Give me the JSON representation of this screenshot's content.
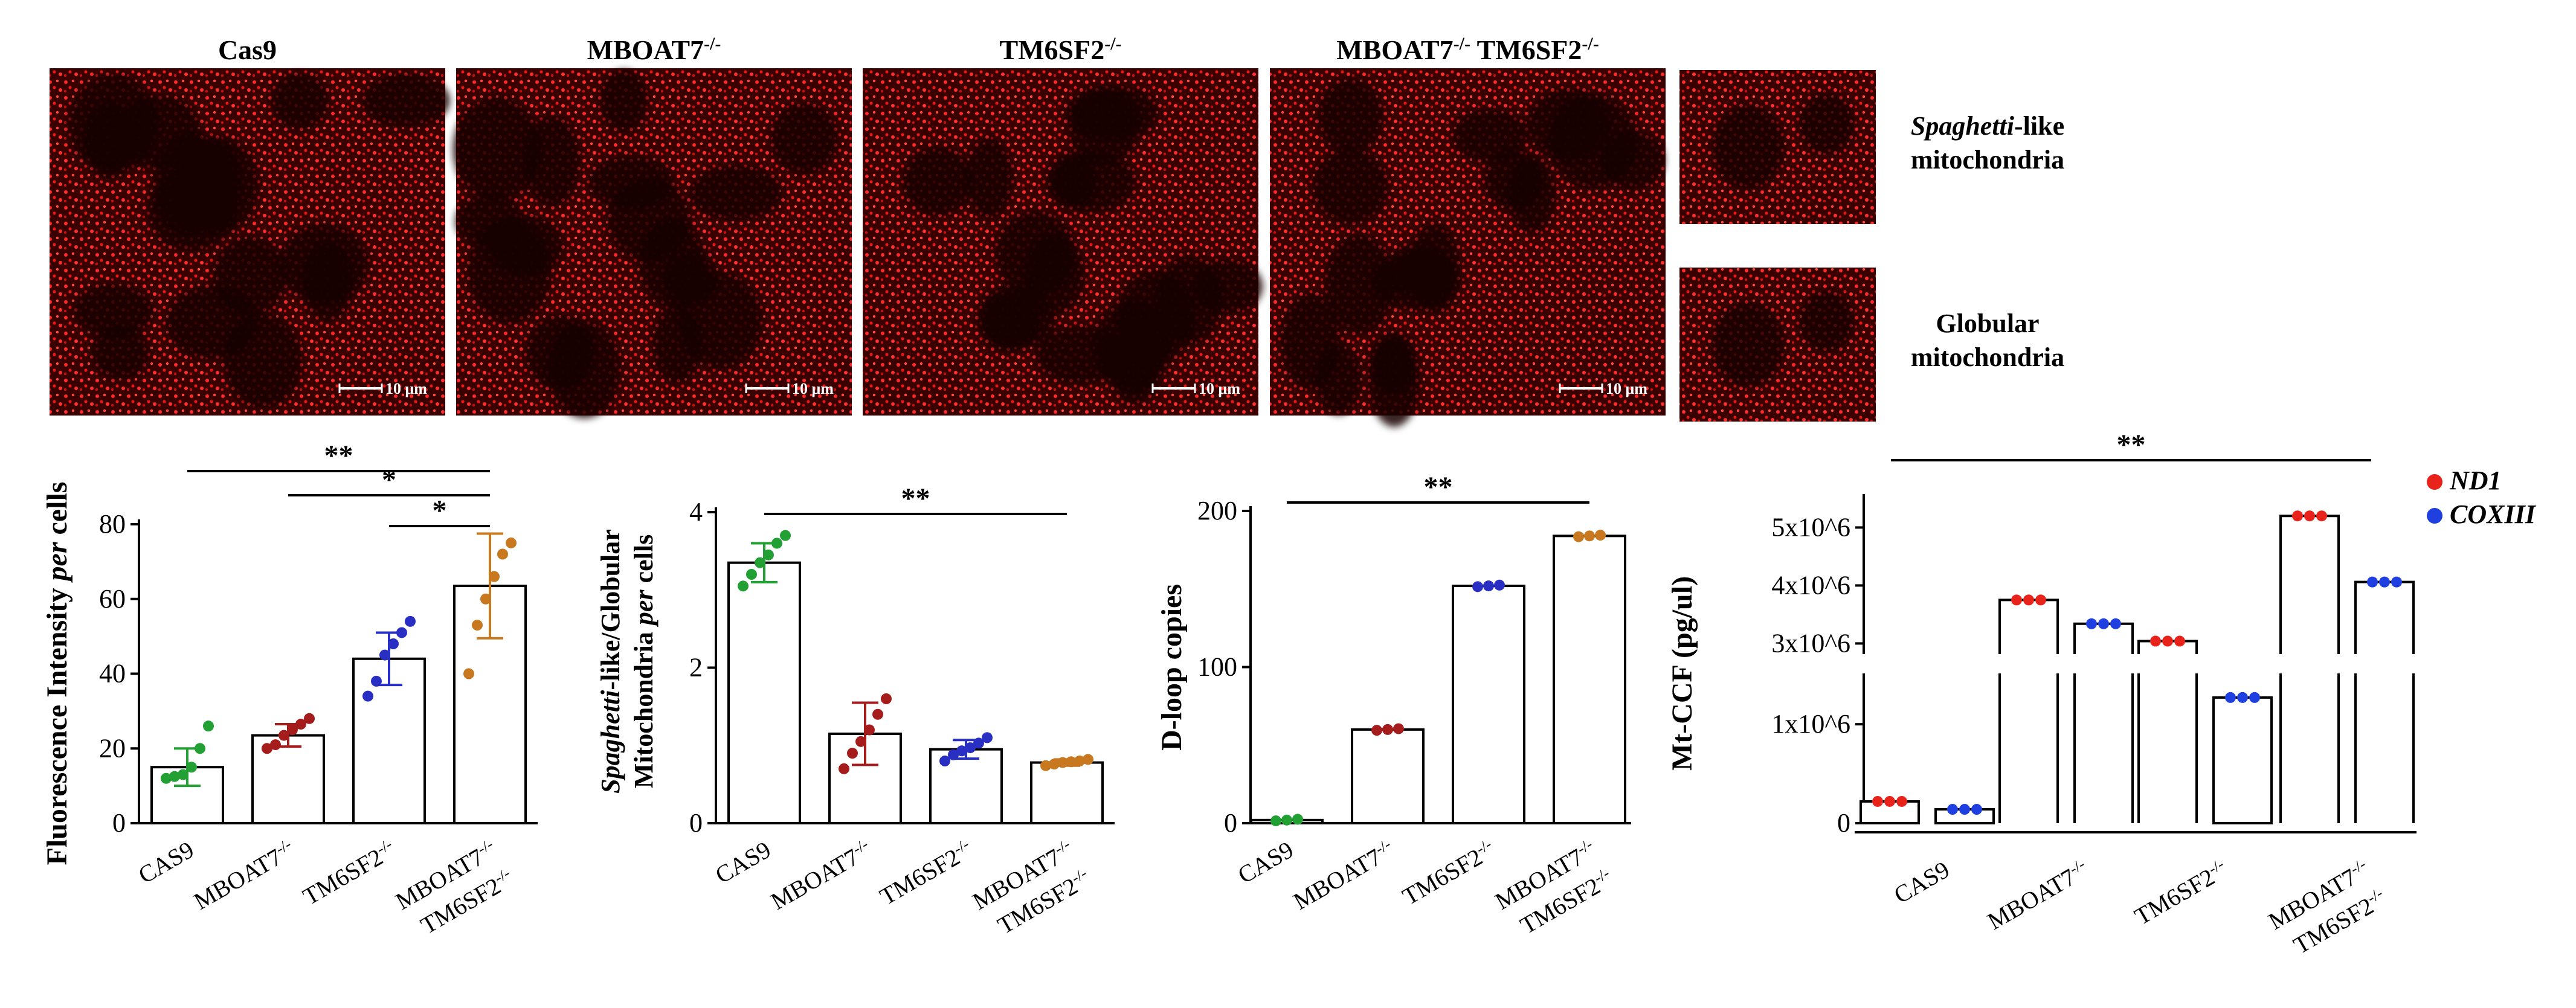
{
  "colors": {
    "micrograph_red": "#e8141c",
    "micrograph_dark": "#140000",
    "cas9": "#22a033",
    "mboat7": "#a51c1c",
    "tm6sf2": "#2a2fc4",
    "double": "#c8781e",
    "nd1": "#e8231b",
    "coxiii": "#1f3fe0"
  },
  "micrographs": {
    "panels": [
      {
        "label": "Cas9",
        "sup": "",
        "label2": "",
        "sup2": "",
        "scale_bar": "10 μm"
      },
      {
        "label": "MBOAT7",
        "sup": "-/-",
        "label2": "",
        "sup2": "",
        "scale_bar": "10 μm"
      },
      {
        "label": "TM6SF2",
        "sup": "-/-",
        "label2": "",
        "sup2": "",
        "scale_bar": "10 μm"
      },
      {
        "label": "MBOAT7",
        "sup": "-/-",
        "label2": " TM6SF2",
        "sup2": "-/-",
        "scale_bar": "10 μm"
      }
    ],
    "insets": [
      {
        "italic": "Spaghetti",
        "rest": "-like",
        "line2": "mitochondria"
      },
      {
        "italic": "",
        "rest": "Globular",
        "line2": "mitochondria"
      }
    ]
  },
  "chart_data": [
    {
      "type": "bar",
      "title": "",
      "ylabel_parts": [
        "Fluorescence Intensity ",
        "per",
        " cells"
      ],
      "categories": [
        "CAS9",
        "MBOAT7-/-",
        "TM6SF2-/-",
        "MBOAT7-/- TM6SF2-/-"
      ],
      "category_labels": [
        {
          "l1": "CAS9",
          "s1": "",
          "l2": "",
          "s2": ""
        },
        {
          "l1": "MBOAT7",
          "s1": "-/-",
          "l2": "",
          "s2": ""
        },
        {
          "l1": "TM6SF2",
          "s1": "-/-",
          "l2": "",
          "s2": ""
        },
        {
          "l1": "MBOAT7",
          "s1": "-/-",
          "l2": "TM6SF2",
          "s2": "-/-"
        }
      ],
      "values": [
        15,
        23.5,
        44,
        63.5
      ],
      "sd": [
        5,
        3,
        7,
        14
      ],
      "points": [
        [
          12,
          12.5,
          13,
          15,
          20,
          26
        ],
        [
          20,
          21,
          23.5,
          25,
          26.5,
          28
        ],
        [
          34,
          38,
          45,
          48,
          51,
          54
        ],
        [
          40,
          53,
          60,
          66,
          72,
          75
        ]
      ],
      "ylim": [
        0,
        80
      ],
      "yticks": [
        0,
        20,
        40,
        60,
        80
      ],
      "significance": [
        {
          "from": 0,
          "to": 3,
          "label": "**"
        },
        {
          "from": 1,
          "to": 3,
          "label": "*"
        },
        {
          "from": 2,
          "to": 3,
          "label": "*"
        }
      ]
    },
    {
      "type": "bar",
      "title": "",
      "ylabel_line1_parts": [
        "Spaghetti",
        "-like/Globular"
      ],
      "ylabel_line2_parts": [
        "Mitochondria ",
        "per",
        " cells"
      ],
      "categories": [
        "CAS9",
        "MBOAT7-/-",
        "TM6SF2-/-",
        "MBOAT7-/- TM6SF2-/-"
      ],
      "category_labels": [
        {
          "l1": "CAS9",
          "s1": "",
          "l2": "",
          "s2": ""
        },
        {
          "l1": "MBOAT7",
          "s1": "-/-",
          "l2": "",
          "s2": ""
        },
        {
          "l1": "TM6SF2",
          "s1": "-/-",
          "l2": "",
          "s2": ""
        },
        {
          "l1": "MBOAT7",
          "s1": "-/-",
          "l2": "TM6SF2",
          "s2": "-/-"
        }
      ],
      "values": [
        3.35,
        1.15,
        0.95,
        0.78
      ],
      "sd": [
        0.25,
        0.4,
        0.12,
        0.04
      ],
      "points": [
        [
          3.05,
          3.2,
          3.35,
          3.45,
          3.6,
          3.7
        ],
        [
          0.7,
          0.9,
          1.05,
          1.2,
          1.4,
          1.6
        ],
        [
          0.8,
          0.88,
          0.93,
          0.97,
          1.03,
          1.1
        ],
        [
          0.74,
          0.76,
          0.78,
          0.79,
          0.8,
          0.82
        ]
      ],
      "ylim": [
        0,
        4
      ],
      "yticks": [
        0,
        2,
        4
      ],
      "significance": [
        {
          "from": 0,
          "to": 3,
          "label": "**"
        }
      ]
    },
    {
      "type": "bar",
      "title": "",
      "ylabel": "D-loop copies",
      "categories": [
        "CAS9",
        "MBOAT7-/-",
        "TM6SF2-/-",
        "MBOAT7-/- TM6SF2-/-"
      ],
      "category_labels": [
        {
          "l1": "CAS9",
          "s1": "",
          "l2": "",
          "s2": ""
        },
        {
          "l1": "MBOAT7",
          "s1": "-/-",
          "l2": "",
          "s2": ""
        },
        {
          "l1": "TM6SF2",
          "s1": "-/-",
          "l2": "",
          "s2": ""
        },
        {
          "l1": "MBOAT7",
          "s1": "-/-",
          "l2": "TM6SF2",
          "s2": "-/-"
        }
      ],
      "values": [
        2,
        60,
        152,
        184
      ],
      "points": [
        [
          1.5,
          2,
          2.5
        ],
        [
          59.5,
          60,
          60.5
        ],
        [
          151.5,
          152,
          152.5
        ],
        [
          183.5,
          184,
          184.5
        ]
      ],
      "ylim": [
        0,
        200
      ],
      "yticks": [
        0,
        100,
        200
      ],
      "significance": [
        {
          "from": 0,
          "to": 3,
          "label": "**"
        }
      ]
    },
    {
      "type": "bar",
      "title": "",
      "ylabel": "Mt-CCF (pg/ul)",
      "axis_break": true,
      "ytick_labels": [
        "0",
        "1x10^6",
        "3x10^6",
        "4x10^6",
        "5x10^6"
      ],
      "categories": [
        "CAS9",
        "MBOAT7-/-",
        "TM6SF2-/-",
        "MBOAT7-/- TM6SF2-/-"
      ],
      "category_labels": [
        {
          "l1": "CAS9",
          "s1": "",
          "l2": "",
          "s2": ""
        },
        {
          "l1": "MBOAT7",
          "s1": "-/-",
          "l2": "",
          "s2": ""
        },
        {
          "l1": "TM6SF2",
          "s1": "-/-",
          "l2": "",
          "s2": ""
        },
        {
          "l1": "MBOAT7",
          "s1": "-/-",
          "l2": "TM6SF2",
          "s2": "-/-"
        }
      ],
      "series": [
        {
          "name": "ND1",
          "values": [
            220000,
            3750000,
            3040000,
            5200000
          ]
        },
        {
          "name": "COXIII",
          "values": [
            140000,
            3340000,
            1270000,
            4060000
          ]
        }
      ],
      "significance": [
        {
          "from": 0,
          "to": 3,
          "label": "**"
        }
      ],
      "legend_position": "top-right"
    }
  ]
}
